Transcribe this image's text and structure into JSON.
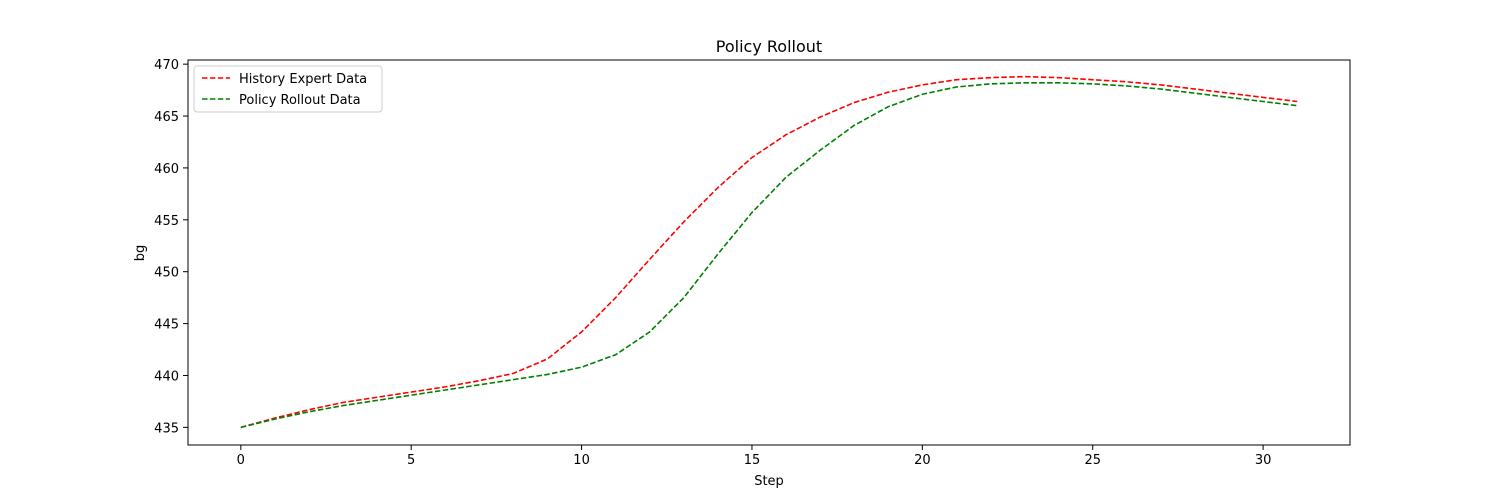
{
  "chart_data": {
    "type": "line",
    "title": "Policy Rollout",
    "xlabel": "Step",
    "ylabel": "bg",
    "xlim": [
      -1.55,
      32.55
    ],
    "ylim": [
      433.3,
      470.4
    ],
    "xticks": [
      0,
      5,
      10,
      15,
      20,
      25,
      30
    ],
    "yticks": [
      435,
      440,
      445,
      450,
      455,
      460,
      465,
      470
    ],
    "grid": false,
    "legend_position": "upper left",
    "x": [
      0,
      1,
      2,
      3,
      4,
      5,
      6,
      7,
      8,
      9,
      10,
      11,
      12,
      13,
      14,
      15,
      16,
      17,
      18,
      19,
      20,
      21,
      22,
      23,
      24,
      25,
      26,
      27,
      28,
      29,
      30,
      31
    ],
    "series": [
      {
        "name": "History Expert Data",
        "color": "#ff0000",
        "linestyle": "dashed",
        "values": [
          435.0,
          435.9,
          436.7,
          437.4,
          437.9,
          438.4,
          438.9,
          439.5,
          440.2,
          441.6,
          444.2,
          447.5,
          451.2,
          454.8,
          458.1,
          461.0,
          463.2,
          464.9,
          466.3,
          467.3,
          468.0,
          468.5,
          468.7,
          468.8,
          468.7,
          468.5,
          468.3,
          468.0,
          467.6,
          467.2,
          466.8,
          466.4
        ]
      },
      {
        "name": "Policy Rollout Data",
        "color": "#008000",
        "linestyle": "dashed",
        "values": [
          435.0,
          435.8,
          436.5,
          437.1,
          437.6,
          438.1,
          438.6,
          439.1,
          439.6,
          440.1,
          440.8,
          442.0,
          444.2,
          447.5,
          451.7,
          455.7,
          459.1,
          461.7,
          464.1,
          465.9,
          467.1,
          467.8,
          468.1,
          468.2,
          468.2,
          468.1,
          467.9,
          467.6,
          467.2,
          466.8,
          466.4,
          466.0
        ]
      }
    ]
  }
}
